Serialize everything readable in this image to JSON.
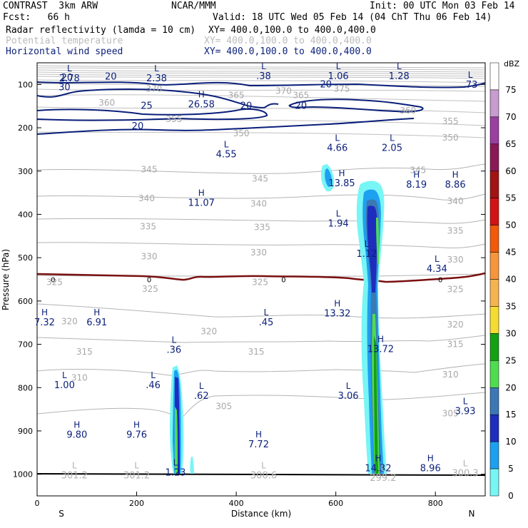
{
  "header": {
    "model": "CONTRAST  3km ARW",
    "org": "NCAR/MMM",
    "init": "Init: 00 UTC Mon 03 Feb 14",
    "fcst": "Fcst:   66 h",
    "valid": "Valid: 18 UTC Wed 05 Feb 14 (04 ChT Thu 06 Feb 14)",
    "fields": [
      {
        "label": "Radar reflectivity (lamda = 10 cm)",
        "xy": "XY= 400.0,100.0 to 400.0,400.0"
      },
      {
        "label": "Potential temperature",
        "xy": "XY= 400.0,100.0 to 400.0,400.0"
      },
      {
        "label": "Horizontal wind speed",
        "xy": "XY= 400.0,100.0 to 400.0,400.0"
      }
    ]
  },
  "colors": {
    "reflectivity": "#000000",
    "theta": "#bbbbbb",
    "wind": "#0a1f7a",
    "freezing": "#7a1010"
  },
  "chart_data": {
    "type": "contour cross-section",
    "xlabel": "Distance (km)",
    "ylabel": "Pressure (hPa)",
    "xlim": [
      0,
      900
    ],
    "ylim": [
      1050,
      50
    ],
    "x_ticks": [
      0,
      200,
      400,
      600,
      800
    ],
    "y_ticks": [
      100,
      200,
      300,
      400,
      500,
      600,
      700,
      800,
      900,
      1000
    ],
    "x_end_labels": {
      "left": "S",
      "right": "N"
    },
    "colorbar": {
      "unit": "dBZ",
      "levels": [
        75,
        70,
        65,
        60,
        55,
        50,
        45,
        40,
        35,
        30,
        25,
        20,
        15,
        10,
        5,
        0
      ],
      "colors": [
        "#ffffff",
        "#c79ccf",
        "#9b3fa0",
        "#8a1a57",
        "#a01414",
        "#d21414",
        "#f05a0a",
        "#f5963c",
        "#f5b450",
        "#f5dc32",
        "#14a014",
        "#50dc50",
        "#3c78b4",
        "#1e2dbe",
        "#1ea0f0",
        "#78f5f5"
      ]
    },
    "theta_labels": [
      {
        "text": "375",
        "x": 612,
        "p": 110
      },
      {
        "text": "370",
        "x": 235,
        "p": 110
      },
      {
        "text": "370",
        "x": 495,
        "p": 115
      },
      {
        "text": "365",
        "x": 530,
        "p": 125
      },
      {
        "text": "365",
        "x": 400,
        "p": 125
      },
      {
        "text": "360",
        "x": 140,
        "p": 142
      },
      {
        "text": "360",
        "x": 745,
        "p": 160
      },
      {
        "text": "355",
        "x": 830,
        "p": 185
      },
      {
        "text": "355",
        "x": 275,
        "p": 180
      },
      {
        "text": "350",
        "x": 410,
        "p": 213
      },
      {
        "text": "350",
        "x": 830,
        "p": 223
      },
      {
        "text": "345",
        "x": 225,
        "p": 296
      },
      {
        "text": "345",
        "x": 448,
        "p": 318
      },
      {
        "text": "345",
        "x": 765,
        "p": 298
      },
      {
        "text": "340",
        "x": 220,
        "p": 363
      },
      {
        "text": "340",
        "x": 445,
        "p": 375
      },
      {
        "text": "340",
        "x": 840,
        "p": 370
      },
      {
        "text": "335",
        "x": 223,
        "p": 428
      },
      {
        "text": "335",
        "x": 452,
        "p": 430
      },
      {
        "text": "335",
        "x": 840,
        "p": 438
      },
      {
        "text": "330",
        "x": 225,
        "p": 497
      },
      {
        "text": "330",
        "x": 445,
        "p": 488
      },
      {
        "text": "330",
        "x": 840,
        "p": 505
      },
      {
        "text": "325",
        "x": 35,
        "p": 557
      },
      {
        "text": "325",
        "x": 227,
        "p": 572
      },
      {
        "text": "325",
        "x": 448,
        "p": 557
      },
      {
        "text": "325",
        "x": 840,
        "p": 573
      },
      {
        "text": "320",
        "x": 65,
        "p": 647
      },
      {
        "text": "320",
        "x": 345,
        "p": 670
      },
      {
        "text": "320",
        "x": 840,
        "p": 655
      },
      {
        "text": "315",
        "x": 95,
        "p": 717
      },
      {
        "text": "315",
        "x": 440,
        "p": 717
      },
      {
        "text": "315",
        "x": 840,
        "p": 700
      },
      {
        "text": "310",
        "x": 85,
        "p": 777
      },
      {
        "text": "310",
        "x": 830,
        "p": 770
      },
      {
        "text": "305",
        "x": 375,
        "p": 843
      },
      {
        "text": "305",
        "x": 830,
        "p": 860
      }
    ],
    "wind_labels": [
      {
        "text": "20",
        "x": 60,
        "p": 85
      },
      {
        "text": "20",
        "x": 148,
        "p": 82
      },
      {
        "text": "30",
        "x": 55,
        "p": 107
      },
      {
        "text": "25",
        "x": 220,
        "p": 150
      },
      {
        "text": "20",
        "x": 580,
        "p": 100
      },
      {
        "text": "20",
        "x": 420,
        "p": 150
      },
      {
        "text": "20",
        "x": 530,
        "p": 150
      },
      {
        "text": "20",
        "x": 202,
        "p": 197
      }
    ],
    "freezing_labels": [
      {
        "text": "0",
        "x": 32,
        "p": 550
      },
      {
        "text": "0",
        "x": 225,
        "p": 550
      },
      {
        "text": "0",
        "x": 495,
        "p": 550
      },
      {
        "text": "0",
        "x": 810,
        "p": 550
      }
    ],
    "extrema": [
      {
        "t": "L",
        "v": "2.78",
        "x": 65,
        "p": 70
      },
      {
        "t": "L",
        "v": "2.38",
        "x": 240,
        "p": 70
      },
      {
        "t": "L",
        "v": ".38",
        "x": 455,
        "p": 65
      },
      {
        "t": "L",
        "v": "1.06",
        "x": 605,
        "p": 65
      },
      {
        "t": "L",
        "v": "1.28",
        "x": 727,
        "p": 65
      },
      {
        "t": "L",
        "v": ".73",
        "x": 870,
        "p": 85
      },
      {
        "t": "H",
        "v": "26.58",
        "x": 330,
        "p": 130
      },
      {
        "t": "L",
        "v": "4.55",
        "x": 380,
        "p": 245
      },
      {
        "t": "L",
        "v": "4.66",
        "x": 603,
        "p": 230
      },
      {
        "t": "L",
        "v": "2.05",
        "x": 713,
        "p": 230
      },
      {
        "t": "H",
        "v": "13.85",
        "x": 612,
        "p": 312
      },
      {
        "t": "H",
        "v": "8.19",
        "x": 762,
        "p": 315
      },
      {
        "t": "H",
        "v": "8.86",
        "x": 840,
        "p": 315
      },
      {
        "t": "H",
        "v": "11.07",
        "x": 330,
        "p": 357
      },
      {
        "t": "L",
        "v": "1.94",
        "x": 605,
        "p": 405
      },
      {
        "t": "L",
        "v": "1.12",
        "x": 662,
        "p": 475
      },
      {
        "t": "L",
        "v": "4.34",
        "x": 803,
        "p": 510
      },
      {
        "t": "H",
        "v": "13.32",
        "x": 603,
        "p": 613
      },
      {
        "t": "H",
        "v": "7.32",
        "x": 15,
        "p": 633
      },
      {
        "t": "H",
        "v": "6.91",
        "x": 120,
        "p": 633
      },
      {
        "t": "L",
        "v": ".45",
        "x": 460,
        "p": 633
      },
      {
        "t": "L",
        "v": ".36",
        "x": 275,
        "p": 697
      },
      {
        "t": "H",
        "v": "13.72",
        "x": 690,
        "p": 695
      },
      {
        "t": "L",
        "v": "1.00",
        "x": 55,
        "p": 778
      },
      {
        "t": "L",
        "v": ".46",
        "x": 233,
        "p": 778
      },
      {
        "t": "L",
        "v": ".62",
        "x": 330,
        "p": 803
      },
      {
        "t": "L",
        "v": "3.06",
        "x": 625,
        "p": 803
      },
      {
        "t": "L",
        "v": "3.93",
        "x": 860,
        "p": 838
      },
      {
        "t": "H",
        "v": "9.80",
        "x": 80,
        "p": 893
      },
      {
        "t": "H",
        "v": "9.76",
        "x": 200,
        "p": 893
      },
      {
        "t": "H",
        "v": "7.72",
        "x": 445,
        "p": 915
      },
      {
        "t": "L",
        "v": "1.23",
        "x": 278,
        "p": 980
      },
      {
        "t": "H",
        "v": "14.32",
        "x": 685,
        "p": 970
      },
      {
        "t": "H",
        "v": "8.96",
        "x": 790,
        "p": 970
      }
    ],
    "surface_labels": [
      {
        "t": "L",
        "v": "301.2",
        "x": 75,
        "p": 1010
      },
      {
        "t": "L",
        "v": "301.2",
        "x": 200,
        "p": 1010
      },
      {
        "t": "L",
        "v": "300.6",
        "x": 455,
        "p": 1010
      },
      {
        "t": "L",
        "v": "299.2",
        "x": 695,
        "p": 1015
      },
      {
        "t": "L",
        "v": "300.3",
        "x": 860,
        "p": 1005
      }
    ]
  }
}
